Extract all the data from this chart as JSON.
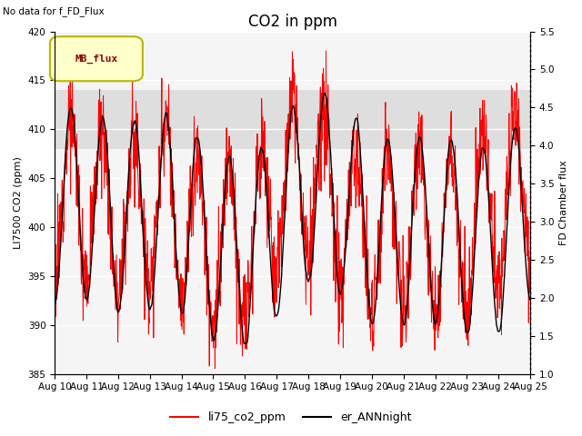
{
  "title": "CO2 in ppm",
  "top_left_text": "No data for f_FD_Flux",
  "ylabel_left": "LI7500 CO2 (ppm)",
  "ylabel_right": "FD Chamber flux",
  "xlabel": "",
  "ylim_left": [
    385,
    420
  ],
  "ylim_right": [
    1.0,
    5.5
  ],
  "yticks_left": [
    385,
    390,
    395,
    400,
    405,
    410,
    415,
    420
  ],
  "yticks_right": [
    1.0,
    1.5,
    2.0,
    2.5,
    3.0,
    3.5,
    4.0,
    4.5,
    5.0,
    5.5
  ],
  "xtick_labels": [
    "Aug 10",
    "Aug 11",
    "Aug 12",
    "Aug 13",
    "Aug 14",
    "Aug 15",
    "Aug 16",
    "Aug 17",
    "Aug 18",
    "Aug 19",
    "Aug 20",
    "Aug 21",
    "Aug 22",
    "Aug 23",
    "Aug 24",
    "Aug 25"
  ],
  "shaded_band": [
    408,
    414
  ],
  "legend_box_label": "MB_flux",
  "legend_box_color": "#ffffcc",
  "legend_box_edge": "#b8b800",
  "line1_color": "#ff0000",
  "line1_label": "li75_co2_ppm",
  "line2_color": "#000000",
  "line2_label": "er_ANNnight",
  "background_color": "#ffffff",
  "plot_bg_color": "#f5f5f5",
  "grid_color": "#ffffff",
  "line1_lw": 0.7,
  "line2_lw": 1.0,
  "title_fontsize": 12,
  "label_fontsize": 8,
  "tick_fontsize": 7.5
}
